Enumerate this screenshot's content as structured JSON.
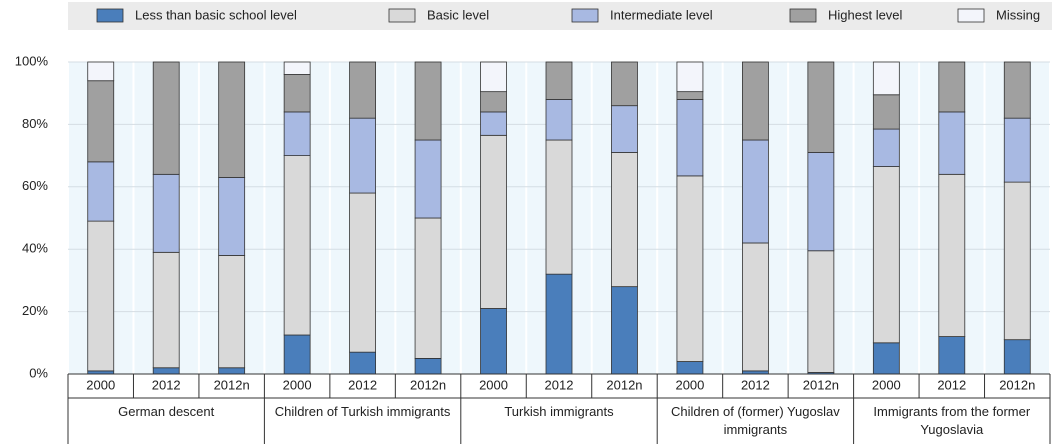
{
  "chart_data": {
    "type": "stacked_bar",
    "categories": [
      "2000",
      "2012",
      "2012n",
      "2000",
      "2012",
      "2012n",
      "2000",
      "2012",
      "2012n",
      "2000",
      "2012",
      "2012n",
      "2000",
      "2012",
      "2012n"
    ],
    "groups": [
      "German descent",
      "Children of Turkish immigrants",
      "Turkish immigrants",
      "Children of  (former) Yugoslav immigrants",
      "Immigrants from the former Yugoslavia"
    ],
    "series": [
      {
        "name": "Less than basic school level",
        "color": "#4a7ebb",
        "values": [
          1,
          2,
          2,
          12.5,
          7,
          5,
          21,
          32,
          28,
          4,
          1,
          0.5,
          10,
          12,
          11
        ]
      },
      {
        "name": "Basic level",
        "color": "#d9d9d9",
        "values": [
          48,
          37,
          36,
          57.5,
          51,
          45,
          55.5,
          43,
          43,
          59.5,
          41,
          39,
          56.5,
          52,
          50.5
        ]
      },
      {
        "name": "Intermediate level",
        "color": "#a8b9e2",
        "values": [
          19,
          25,
          25,
          14,
          24,
          25,
          7.5,
          13,
          15,
          24.5,
          33,
          31.5,
          12,
          20,
          20.5
        ]
      },
      {
        "name": "Highest level",
        "color": "#a0a0a0",
        "values": [
          26,
          36,
          37,
          12,
          18,
          25,
          6.5,
          12,
          14,
          2.5,
          25,
          29,
          11,
          16,
          18
        ]
      },
      {
        "name": "Missing",
        "color": "#f3f5fb",
        "values": [
          6,
          0,
          0,
          4,
          0,
          0,
          9.5,
          0,
          0,
          9.5,
          0,
          0,
          10.5,
          0,
          0
        ]
      }
    ],
    "ylim": [
      0,
      100
    ],
    "yticks": [
      {
        "value": 0,
        "label": "0%"
      },
      {
        "value": 20,
        "label": "20%"
      },
      {
        "value": 40,
        "label": "40%"
      },
      {
        "value": 60,
        "label": "60%"
      },
      {
        "value": 80,
        "label": "80%"
      },
      {
        "value": 100,
        "label": "100%"
      }
    ],
    "grid": true
  }
}
